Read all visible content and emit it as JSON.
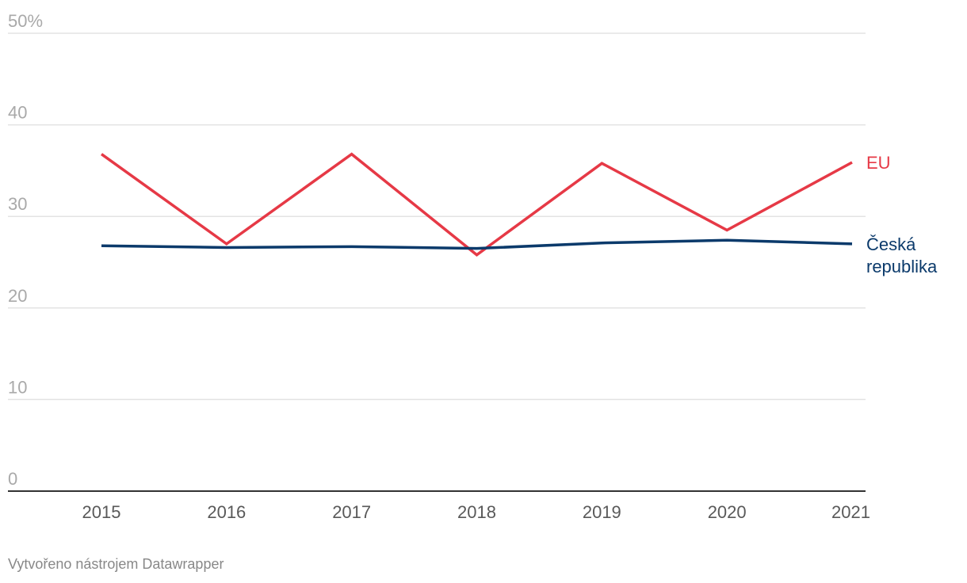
{
  "chart_data": {
    "type": "line",
    "x": [
      "2015",
      "2016",
      "2017",
      "2018",
      "2019",
      "2020",
      "2021"
    ],
    "series": [
      {
        "name": "EU",
        "color": "#e63946",
        "values": [
          36.8,
          27.0,
          36.8,
          25.8,
          35.8,
          28.5,
          35.9
        ]
      },
      {
        "name": "Česká republika",
        "name_lines": [
          "Česká",
          "republika"
        ],
        "color": "#0b3a6b",
        "values": [
          26.8,
          26.6,
          26.7,
          26.5,
          27.1,
          27.4,
          27.0
        ]
      }
    ],
    "yticks": [
      {
        "value": 0,
        "label": "0"
      },
      {
        "value": 10,
        "label": "10"
      },
      {
        "value": 20,
        "label": "20"
      },
      {
        "value": 30,
        "label": "30"
      },
      {
        "value": 40,
        "label": "40"
      },
      {
        "value": 50,
        "label": "50%"
      }
    ],
    "ylim": [
      0,
      50
    ],
    "grid": true,
    "legend": "inline-right"
  },
  "footer": {
    "credit": "Vytvořeno nástrojem Datawrapper"
  }
}
